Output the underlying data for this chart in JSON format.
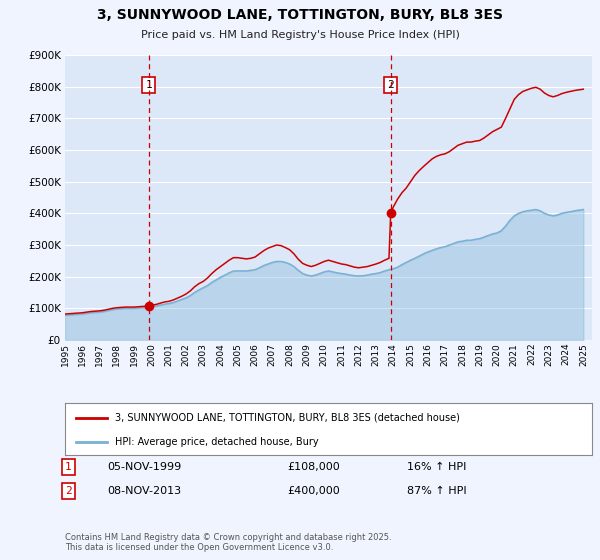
{
  "title": "3, SUNNYWOOD LANE, TOTTINGTON, BURY, BL8 3ES",
  "subtitle": "Price paid vs. HM Land Registry's House Price Index (HPI)",
  "bg_color": "#f0f4ff",
  "plot_bg_color": "#dce8f8",
  "grid_color": "#ffffff",
  "hpi_color": "#7ab0d4",
  "house_color": "#cc0000",
  "ylim": [
    0,
    900000
  ],
  "xlim_start": 1995.0,
  "xlim_end": 2025.5,
  "sale1_x": 1999.85,
  "sale1_y": 108000,
  "sale2_x": 2013.85,
  "sale2_y": 400000,
  "legend_label_house": "3, SUNNYWOOD LANE, TOTTINGTON, BURY, BL8 3ES (detached house)",
  "legend_label_hpi": "HPI: Average price, detached house, Bury",
  "annotation1_label": "1",
  "annotation1_date": "05-NOV-1999",
  "annotation1_price": "£108,000",
  "annotation1_hpi": "16% ↑ HPI",
  "annotation2_label": "2",
  "annotation2_date": "08-NOV-2013",
  "annotation2_price": "£400,000",
  "annotation2_hpi": "87% ↑ HPI",
  "footer": "Contains HM Land Registry data © Crown copyright and database right 2025.\nThis data is licensed under the Open Government Licence v3.0.",
  "hpi_data_x": [
    1995.0,
    1995.25,
    1995.5,
    1995.75,
    1996.0,
    1996.25,
    1996.5,
    1996.75,
    1997.0,
    1997.25,
    1997.5,
    1997.75,
    1998.0,
    1998.25,
    1998.5,
    1998.75,
    1999.0,
    1999.25,
    1999.5,
    1999.75,
    2000.0,
    2000.25,
    2000.5,
    2000.75,
    2001.0,
    2001.25,
    2001.5,
    2001.75,
    2002.0,
    2002.25,
    2002.5,
    2002.75,
    2003.0,
    2003.25,
    2003.5,
    2003.75,
    2004.0,
    2004.25,
    2004.5,
    2004.75,
    2005.0,
    2005.25,
    2005.5,
    2005.75,
    2006.0,
    2006.25,
    2006.5,
    2006.75,
    2007.0,
    2007.25,
    2007.5,
    2007.75,
    2008.0,
    2008.25,
    2008.5,
    2008.75,
    2009.0,
    2009.25,
    2009.5,
    2009.75,
    2010.0,
    2010.25,
    2010.5,
    2010.75,
    2011.0,
    2011.25,
    2011.5,
    2011.75,
    2012.0,
    2012.25,
    2012.5,
    2012.75,
    2013.0,
    2013.25,
    2013.5,
    2013.75,
    2014.0,
    2014.25,
    2014.5,
    2014.75,
    2015.0,
    2015.25,
    2015.5,
    2015.75,
    2016.0,
    2016.25,
    2016.5,
    2016.75,
    2017.0,
    2017.25,
    2017.5,
    2017.75,
    2018.0,
    2018.25,
    2018.5,
    2018.75,
    2019.0,
    2019.25,
    2019.5,
    2019.75,
    2020.0,
    2020.25,
    2020.5,
    2020.75,
    2021.0,
    2021.25,
    2021.5,
    2021.75,
    2022.0,
    2022.25,
    2022.5,
    2022.75,
    2023.0,
    2023.25,
    2023.5,
    2023.75,
    2024.0,
    2024.25,
    2024.5,
    2024.75,
    2025.0
  ],
  "hpi_data_y": [
    78000,
    79000,
    80000,
    81000,
    82000,
    84000,
    86000,
    87000,
    88000,
    90000,
    93000,
    96000,
    98000,
    99000,
    100000,
    100000,
    100000,
    101000,
    102000,
    103000,
    105000,
    107000,
    110000,
    113000,
    115000,
    118000,
    123000,
    128000,
    133000,
    140000,
    150000,
    158000,
    165000,
    172000,
    182000,
    190000,
    198000,
    205000,
    212000,
    218000,
    218000,
    218000,
    218000,
    220000,
    222000,
    228000,
    235000,
    240000,
    245000,
    248000,
    248000,
    245000,
    240000,
    232000,
    220000,
    210000,
    205000,
    202000,
    205000,
    210000,
    215000,
    218000,
    215000,
    212000,
    210000,
    208000,
    205000,
    203000,
    202000,
    203000,
    205000,
    208000,
    210000,
    213000,
    218000,
    222000,
    225000,
    230000,
    238000,
    245000,
    252000,
    258000,
    265000,
    272000,
    278000,
    283000,
    288000,
    292000,
    295000,
    300000,
    305000,
    310000,
    312000,
    315000,
    315000,
    318000,
    320000,
    325000,
    330000,
    335000,
    338000,
    345000,
    360000,
    378000,
    392000,
    400000,
    405000,
    408000,
    410000,
    412000,
    408000,
    400000,
    395000,
    392000,
    395000,
    400000,
    403000,
    405000,
    408000,
    410000,
    412000
  ],
  "house_data_x": [
    1995.0,
    1995.25,
    1995.5,
    1995.75,
    1996.0,
    1996.25,
    1996.5,
    1996.75,
    1997.0,
    1997.25,
    1997.5,
    1997.75,
    1998.0,
    1998.25,
    1998.5,
    1998.75,
    1999.0,
    1999.25,
    1999.5,
    1999.75,
    1999.85,
    2000.0,
    2000.25,
    2000.5,
    2000.75,
    2001.0,
    2001.25,
    2001.5,
    2001.75,
    2002.0,
    2002.25,
    2002.5,
    2002.75,
    2003.0,
    2003.25,
    2003.5,
    2003.75,
    2004.0,
    2004.25,
    2004.5,
    2004.75,
    2005.0,
    2005.25,
    2005.5,
    2005.75,
    2006.0,
    2006.25,
    2006.5,
    2006.75,
    2007.0,
    2007.25,
    2007.5,
    2007.75,
    2008.0,
    2008.25,
    2008.5,
    2008.75,
    2009.0,
    2009.25,
    2009.5,
    2009.75,
    2010.0,
    2010.25,
    2010.5,
    2010.75,
    2011.0,
    2011.25,
    2011.5,
    2011.75,
    2012.0,
    2012.25,
    2012.5,
    2012.75,
    2013.0,
    2013.25,
    2013.5,
    2013.75,
    2013.85,
    2014.0,
    2014.25,
    2014.5,
    2014.75,
    2015.0,
    2015.25,
    2015.5,
    2015.75,
    2016.0,
    2016.25,
    2016.5,
    2016.75,
    2017.0,
    2017.25,
    2017.5,
    2017.75,
    2018.0,
    2018.25,
    2018.5,
    2018.75,
    2019.0,
    2019.25,
    2019.5,
    2019.75,
    2020.0,
    2020.25,
    2020.5,
    2020.75,
    2021.0,
    2021.25,
    2021.5,
    2021.75,
    2022.0,
    2022.25,
    2022.5,
    2022.75,
    2023.0,
    2023.25,
    2023.5,
    2023.75,
    2024.0,
    2024.25,
    2024.5,
    2024.75,
    2025.0
  ],
  "house_data_y": [
    82000,
    83000,
    84000,
    85000,
    86000,
    88000,
    90000,
    91000,
    92000,
    94000,
    97000,
    100000,
    102000,
    103000,
    104000,
    104000,
    104000,
    105000,
    106000,
    107000,
    108000,
    110000,
    112000,
    116000,
    120000,
    122000,
    126000,
    132000,
    138000,
    145000,
    155000,
    168000,
    178000,
    185000,
    196000,
    210000,
    222000,
    232000,
    242000,
    252000,
    260000,
    260000,
    258000,
    256000,
    258000,
    262000,
    272000,
    282000,
    290000,
    295000,
    300000,
    298000,
    292000,
    285000,
    272000,
    255000,
    242000,
    236000,
    232000,
    236000,
    242000,
    248000,
    252000,
    248000,
    244000,
    240000,
    238000,
    234000,
    230000,
    228000,
    230000,
    232000,
    236000,
    240000,
    245000,
    252000,
    258000,
    400000,
    420000,
    445000,
    465000,
    480000,
    500000,
    520000,
    535000,
    548000,
    560000,
    572000,
    580000,
    585000,
    588000,
    595000,
    605000,
    615000,
    620000,
    625000,
    625000,
    628000,
    630000,
    638000,
    648000,
    658000,
    665000,
    672000,
    700000,
    730000,
    760000,
    775000,
    785000,
    790000,
    795000,
    798000,
    792000,
    780000,
    772000,
    768000,
    772000,
    778000,
    782000,
    785000,
    788000,
    790000,
    792000
  ]
}
